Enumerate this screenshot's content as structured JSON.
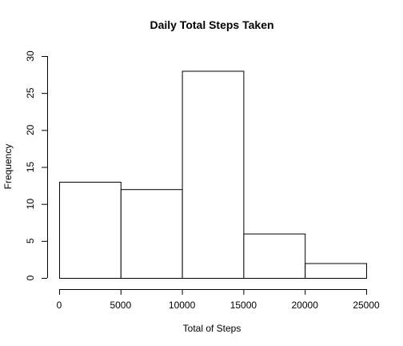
{
  "chart_data": {
    "type": "bar",
    "title": "Daily Total Steps Taken",
    "xlabel": "Total of Steps",
    "ylabel": "Frequency",
    "bins": [
      {
        "start": 0,
        "end": 5000,
        "count": 13
      },
      {
        "start": 5000,
        "end": 10000,
        "count": 12
      },
      {
        "start": 10000,
        "end": 15000,
        "count": 28
      },
      {
        "start": 15000,
        "end": 20000,
        "count": 6
      },
      {
        "start": 20000,
        "end": 25000,
        "count": 2
      }
    ],
    "x_ticks": [
      "0",
      "5000",
      "10000",
      "15000",
      "20000",
      "25000"
    ],
    "y_ticks": [
      "0",
      "5",
      "10",
      "15",
      "20",
      "25",
      "30"
    ],
    "xlim": [
      0,
      25000
    ],
    "ylim": [
      0,
      30
    ],
    "grid": false,
    "legend": "none"
  }
}
